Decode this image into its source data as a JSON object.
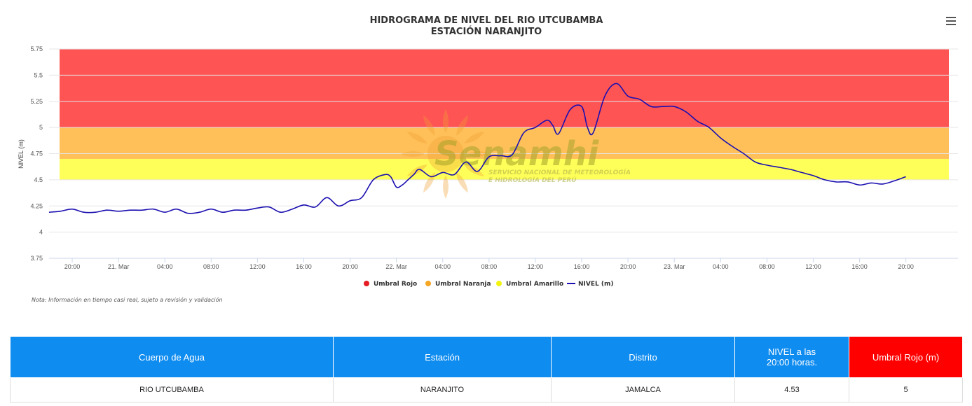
{
  "chart_data": {
    "type": "line",
    "title": "HIDROGRAMA DE NIVEL DEL RIO UTCUBAMBA",
    "subtitle": "ESTACIÓN NARANJITO",
    "ylabel": "NIVEL (m)",
    "xlabel": "",
    "ylim": [
      3.75,
      5.75
    ],
    "yticks": [
      "3.75",
      "4",
      "4.25",
      "4.5",
      "4.75",
      "5",
      "5.25",
      "5.5",
      "5.75"
    ],
    "x_range_hours": [
      -2,
      76.5
    ],
    "xticks": [
      {
        "h": 0,
        "label": "20:00"
      },
      {
        "h": 4,
        "label": "21. Mar"
      },
      {
        "h": 8,
        "label": "04:00"
      },
      {
        "h": 12,
        "label": "08:00"
      },
      {
        "h": 16,
        "label": "12:00"
      },
      {
        "h": 20,
        "label": "16:00"
      },
      {
        "h": 24,
        "label": "20:00"
      },
      {
        "h": 28,
        "label": "22. Mar"
      },
      {
        "h": 32,
        "label": "04:00"
      },
      {
        "h": 36,
        "label": "08:00"
      },
      {
        "h": 40,
        "label": "12:00"
      },
      {
        "h": 44,
        "label": "16:00"
      },
      {
        "h": 48,
        "label": "20:00"
      },
      {
        "h": 52,
        "label": "23. Mar"
      },
      {
        "h": 56,
        "label": "04:00"
      },
      {
        "h": 60,
        "label": "08:00"
      },
      {
        "h": 64,
        "label": "12:00"
      },
      {
        "h": 68,
        "label": "16:00"
      },
      {
        "h": 72,
        "label": "20:00"
      }
    ],
    "bands": [
      {
        "name": "Umbral Rojo",
        "from": 5.0,
        "to": 5.75,
        "color": "#ff5454"
      },
      {
        "name": "Umbral Naranja",
        "from": 4.7,
        "to": 5.0,
        "color": "#ffc05a"
      },
      {
        "name": "Umbral Amarillo",
        "from": 4.5,
        "to": 4.7,
        "color": "#ffff5a"
      }
    ],
    "series": [
      {
        "name": "NIVEL (m)",
        "color": "#1a0fb0",
        "x": [
          -2,
          -1,
          0,
          1,
          2,
          3,
          4,
          5,
          6,
          7,
          8,
          9,
          10,
          11,
          12,
          13,
          14,
          15,
          16,
          17,
          18,
          19,
          20,
          21,
          22,
          23,
          24,
          25,
          26,
          27,
          27.5,
          28,
          28.5,
          29,
          29.5,
          30,
          31,
          32,
          33,
          34,
          35,
          36,
          37,
          38,
          39,
          40,
          41,
          41.5,
          42,
          43,
          44,
          44.5,
          45,
          46,
          47,
          48,
          49,
          50,
          51,
          52,
          53,
          54,
          55,
          56,
          57,
          58,
          59,
          60,
          61,
          62,
          63,
          64,
          65,
          66,
          67,
          68,
          69,
          70,
          71,
          72
        ],
        "values": [
          4.19,
          4.2,
          4.22,
          4.19,
          4.19,
          4.21,
          4.2,
          4.21,
          4.21,
          4.22,
          4.19,
          4.22,
          4.18,
          4.19,
          4.22,
          4.19,
          4.21,
          4.21,
          4.23,
          4.24,
          4.19,
          4.22,
          4.26,
          4.24,
          4.33,
          4.25,
          4.3,
          4.33,
          4.5,
          4.55,
          4.53,
          4.43,
          4.45,
          4.5,
          4.55,
          4.6,
          4.53,
          4.57,
          4.55,
          4.67,
          4.58,
          4.72,
          4.73,
          4.74,
          4.95,
          5.0,
          5.07,
          5.02,
          4.94,
          5.17,
          5.2,
          5.0,
          4.95,
          5.3,
          5.42,
          5.3,
          5.27,
          5.2,
          5.2,
          5.2,
          5.15,
          5.06,
          5.0,
          4.9,
          4.82,
          4.75,
          4.67,
          4.64,
          4.62,
          4.6,
          4.57,
          4.54,
          4.5,
          4.48,
          4.48,
          4.45,
          4.47,
          4.46,
          4.49,
          4.53
        ]
      }
    ],
    "legend": {
      "placement": "bottom",
      "items": [
        {
          "label": "Umbral Rojo",
          "color": "#e51c23",
          "marker": "circle"
        },
        {
          "label": "Umbral Naranja",
          "color": "#f5a623",
          "marker": "circle"
        },
        {
          "label": "Umbral Amarillo",
          "color": "#f3f312",
          "marker": "circle"
        },
        {
          "label": "NIVEL (m)",
          "color": "#1a0fb0",
          "marker": "line"
        }
      ]
    },
    "grid": true
  },
  "note": "Nota: Información en tiempo casi real, sujeto a revisión y validación",
  "watermark": {
    "brand": "Senamhi",
    "line1": "SERVICIO NACIONAL DE METEOROLOGÍA",
    "line2": "E HIDROLOGÍA DEL PERÚ"
  },
  "menu_icon": "hamburger-menu-icon",
  "table": {
    "headers": [
      "Cuerpo de Agua",
      "Estación",
      "Distrito",
      "NIVEL a las\n20:00 horas.",
      "Umbral Rojo (m)"
    ],
    "row": [
      "RIO UTCUBAMBA",
      "NARANJITO",
      "JAMALCA",
      "4.53",
      "5"
    ],
    "header_colors": {
      "default": "#0f8cf0",
      "alert": "#ff0000"
    }
  }
}
